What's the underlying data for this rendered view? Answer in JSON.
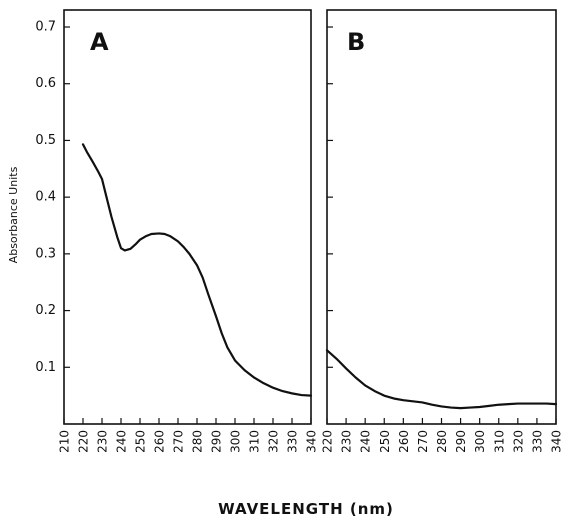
{
  "chart_data": [
    {
      "type": "line",
      "panel_label": "A",
      "ylabel": "Absorbance Units",
      "xlabel": "WAVELENGTH (nm)",
      "xlim": [
        210,
        340
      ],
      "ylim": [
        0,
        0.73
      ],
      "x_ticks": [
        "210",
        "220",
        "230",
        "240",
        "250",
        "260",
        "270",
        "280",
        "290",
        "300",
        "310",
        "320",
        "330",
        "340"
      ],
      "y_ticks": [
        "0.1",
        "0.2",
        "0.3",
        "0.4",
        "0.5",
        "0.6",
        "0.7"
      ],
      "y_tick_values": [
        0.1,
        0.2,
        0.3,
        0.4,
        0.5,
        0.6,
        0.7
      ],
      "series": [
        {
          "x": [
            220,
            222,
            225,
            228,
            230,
            232,
            235,
            238,
            240,
            242,
            245,
            248,
            250,
            253,
            256,
            260,
            263,
            266,
            270,
            273,
            276,
            280,
            283,
            286,
            290,
            293,
            296,
            300,
            305,
            310,
            315,
            320,
            325,
            330,
            335,
            340
          ],
          "y": [
            0.493,
            0.48,
            0.463,
            0.445,
            0.432,
            0.405,
            0.365,
            0.33,
            0.31,
            0.306,
            0.309,
            0.318,
            0.325,
            0.331,
            0.335,
            0.336,
            0.335,
            0.331,
            0.322,
            0.312,
            0.3,
            0.28,
            0.258,
            0.228,
            0.19,
            0.16,
            0.135,
            0.112,
            0.095,
            0.082,
            0.072,
            0.064,
            0.058,
            0.054,
            0.051,
            0.05
          ]
        }
      ]
    },
    {
      "type": "line",
      "panel_label": "B",
      "xlim": [
        220,
        340
      ],
      "ylim": [
        0,
        0.73
      ],
      "x_ticks": [
        "220",
        "230",
        "240",
        "250",
        "260",
        "270",
        "280",
        "290",
        "300",
        "310",
        "320",
        "330",
        "340"
      ],
      "series": [
        {
          "x": [
            220,
            225,
            230,
            235,
            240,
            245,
            250,
            255,
            260,
            265,
            270,
            275,
            280,
            285,
            290,
            295,
            300,
            305,
            310,
            315,
            320,
            325,
            330,
            335,
            340
          ],
          "y": [
            0.13,
            0.115,
            0.098,
            0.082,
            0.068,
            0.058,
            0.05,
            0.045,
            0.042,
            0.04,
            0.038,
            0.034,
            0.031,
            0.029,
            0.028,
            0.029,
            0.03,
            0.032,
            0.034,
            0.035,
            0.036,
            0.036,
            0.036,
            0.036,
            0.035
          ]
        }
      ]
    }
  ]
}
